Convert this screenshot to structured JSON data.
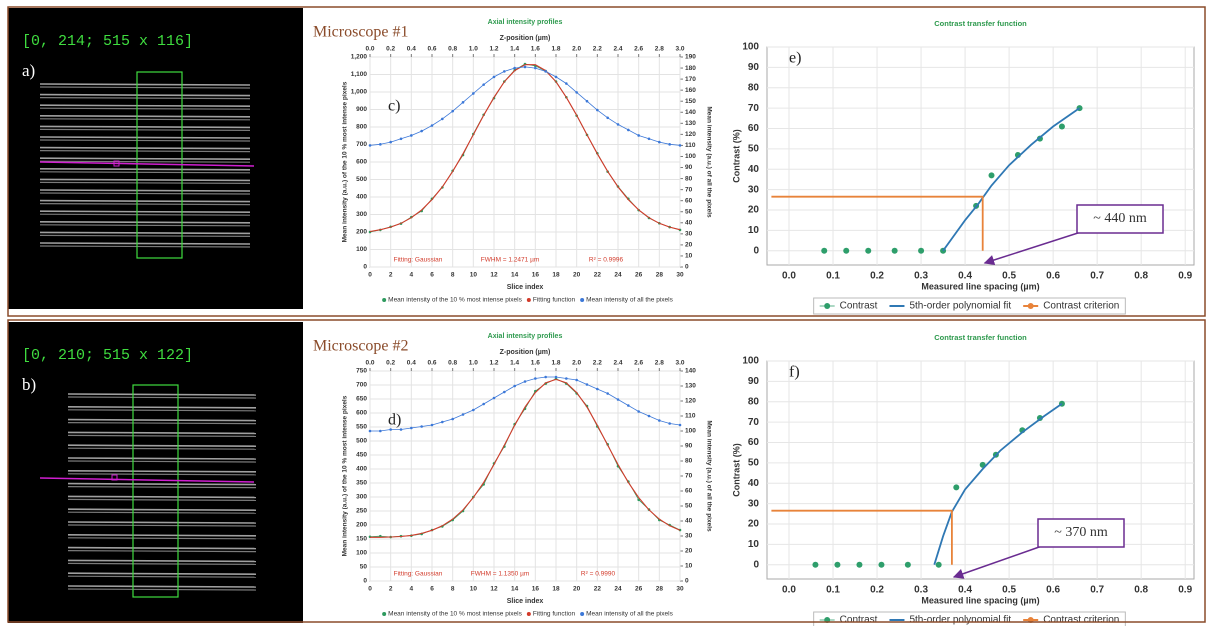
{
  "images": [
    {
      "label": "[0, 214; 515 x 116]",
      "panel": "a)"
    },
    {
      "label": "[0, 210; 515 x 122]",
      "panel": "b)"
    }
  ],
  "chart_data": [
    {
      "type": "line",
      "heading": "Microscope #1",
      "title": "Axial intensity profiles",
      "panel": "c)",
      "x_label": "Slice index",
      "x2_label": "Z-position (µm)",
      "y_label": "Mean intensity (a.u.) of the 10 % most intense pixels",
      "y2_label": "Mean intensity (a.u.) of all the pixels",
      "annotations": [
        "Fitting: Gaussian",
        "FWHM = 1.2471 µm",
        "R² = 0.9996"
      ],
      "grid": true,
      "x": [
        0,
        1,
        2,
        3,
        4,
        5,
        6,
        7,
        8,
        9,
        10,
        11,
        12,
        13,
        14,
        15,
        16,
        17,
        18,
        19,
        20,
        21,
        22,
        23,
        24,
        25,
        26,
        27,
        28,
        29,
        30
      ],
      "xlim": [
        0,
        30
      ],
      "xticks": [
        0,
        2,
        4,
        6,
        8,
        10,
        12,
        14,
        16,
        18,
        20,
        22,
        24,
        26,
        28,
        30
      ],
      "x2lim": [
        0,
        3
      ],
      "x2ticks": [
        {
          "value": 0,
          "label": "0.0"
        },
        0.2,
        0.4,
        0.6,
        0.8,
        {
          "value": 1,
          "label": "1.0"
        },
        1.2,
        1.4,
        1.6,
        1.8,
        {
          "value": 2,
          "label": "2.0"
        },
        2.2,
        2.4,
        2.6,
        2.8,
        {
          "value": 3,
          "label": "3.0"
        }
      ],
      "ylim": [
        0,
        1200
      ],
      "yticks": [
        0,
        100,
        200,
        300,
        400,
        500,
        600,
        700,
        800,
        900,
        {
          "value": 1000,
          "label": "1,000"
        },
        {
          "value": 1100,
          "label": "1,100"
        },
        {
          "value": 1200,
          "label": "1,200"
        }
      ],
      "y2lim": [
        0,
        190
      ],
      "y2ticks": [
        0,
        10,
        20,
        30,
        40,
        50,
        60,
        70,
        80,
        90,
        100,
        110,
        120,
        130,
        140,
        150,
        160,
        170,
        180,
        190
      ],
      "series": [
        {
          "name": "Mean intensity of the 10 % most intense pixels",
          "color": "#2e9a5e",
          "style": "line-markers",
          "values": [
            200,
            212,
            230,
            248,
            285,
            320,
            390,
            455,
            550,
            640,
            760,
            870,
            965,
            1060,
            1125,
            1160,
            1150,
            1120,
            1060,
            970,
            865,
            755,
            650,
            545,
            460,
            390,
            325,
            280,
            250,
            228,
            212
          ]
        },
        {
          "name": "Fitting function",
          "color": "#d23a2a",
          "style": "line",
          "values": [
            203,
            213,
            228,
            250,
            282,
            326,
            385,
            458,
            546,
            647,
            756,
            867,
            970,
            1058,
            1122,
            1156,
            1156,
            1122,
            1058,
            970,
            867,
            756,
            647,
            546,
            458,
            385,
            326,
            282,
            250,
            228,
            213
          ]
        },
        {
          "name": "Mean intensity of all the pixels",
          "color": "#3c78d8",
          "style": "line-markers",
          "axis": "y2",
          "values": [
            110,
            111,
            113,
            116,
            119,
            123,
            128,
            134,
            141,
            149,
            157,
            165,
            172,
            177,
            180,
            181,
            180,
            177,
            172,
            166,
            158,
            150,
            142,
            135,
            129,
            124,
            119,
            116,
            113,
            111,
            110
          ]
        }
      ]
    },
    {
      "type": "scatter",
      "title": "Contrast transfer function",
      "panel": "e)",
      "x_label": "Measured line spacing (µm)",
      "y_label": "Contrast (%)",
      "annotation": "~ 440 nm",
      "grid": true,
      "xlim": [
        -0.05,
        0.92
      ],
      "xticks": [
        {
          "value": 0,
          "label": "0.0"
        },
        0.1,
        0.2,
        0.3,
        0.4,
        0.5,
        0.6,
        0.7,
        0.8,
        0.9
      ],
      "ylim": [
        -7,
        100
      ],
      "yticks": [
        0,
        10,
        20,
        30,
        40,
        50,
        60,
        70,
        80,
        90,
        100
      ],
      "series": [
        {
          "name": "Contrast",
          "color": "#2e9e6b",
          "style": "markers",
          "x": [
            0.08,
            0.13,
            0.18,
            0.24,
            0.3,
            0.35,
            0.425,
            0.46,
            0.52,
            0.57,
            0.62,
            0.66
          ],
          "values": [
            0,
            0,
            0,
            0,
            0,
            0,
            22,
            37,
            47,
            55,
            61,
            70
          ]
        },
        {
          "name": "5th-order polynomial fit",
          "color": "#2f78b4",
          "style": "line",
          "x": [
            0.35,
            0.37,
            0.4,
            0.43,
            0.46,
            0.5,
            0.55,
            0.6,
            0.66
          ],
          "values": [
            0,
            6,
            15,
            23,
            32,
            42,
            52,
            61,
            70
          ]
        },
        {
          "name": "Contrast criterion",
          "color": "#e8833a",
          "style": "line",
          "x": [
            -0.04,
            0.44,
            0.44
          ],
          "values": [
            26.5,
            26.5,
            0
          ]
        }
      ]
    },
    {
      "type": "line",
      "heading": "Microscope #2",
      "title": "Axial intensity profiles",
      "panel": "d)",
      "x_label": "Slice index",
      "x2_label": "Z-position (µm)",
      "y_label": "Mean intensity (a.u.) of the 10 % most intense pixels",
      "y2_label": "Mean intensity (a.u.) of all the pixels",
      "annotations": [
        "Fitting: Gaussian",
        "FWHM = 1.1350 µm",
        "R² = 0.9990"
      ],
      "grid": true,
      "x": [
        0,
        1,
        2,
        3,
        4,
        5,
        6,
        7,
        8,
        9,
        10,
        11,
        12,
        13,
        14,
        15,
        16,
        17,
        18,
        19,
        20,
        21,
        22,
        23,
        24,
        25,
        26,
        27,
        28,
        29,
        30
      ],
      "xlim": [
        0,
        30
      ],
      "xticks": [
        0,
        2,
        4,
        6,
        8,
        10,
        12,
        14,
        16,
        18,
        20,
        22,
        24,
        26,
        28,
        30
      ],
      "x2lim": [
        0,
        3
      ],
      "x2ticks": [
        {
          "value": 0,
          "label": "0.0"
        },
        0.2,
        0.4,
        0.6,
        0.8,
        {
          "value": 1,
          "label": "1.0"
        },
        1.2,
        1.4,
        1.6,
        1.8,
        {
          "value": 2,
          "label": "2.0"
        },
        2.2,
        2.4,
        2.6,
        2.8,
        {
          "value": 3,
          "label": "3.0"
        }
      ],
      "ylim": [
        0,
        750
      ],
      "yticks": [
        0,
        50,
        100,
        150,
        200,
        250,
        300,
        350,
        400,
        450,
        500,
        550,
        600,
        650,
        700,
        750
      ],
      "y2lim": [
        0,
        140
      ],
      "y2ticks": [
        0,
        10,
        20,
        30,
        40,
        50,
        60,
        70,
        80,
        90,
        100,
        110,
        120,
        130,
        140
      ],
      "series": [
        {
          "name": "Mean intensity of the 10 % most intense pixels",
          "color": "#2e9a5e",
          "style": "line-markers",
          "values": [
            158,
            160,
            157,
            160,
            162,
            168,
            182,
            195,
            218,
            250,
            300,
            345,
            420,
            480,
            560,
            615,
            678,
            705,
            722,
            705,
            670,
            625,
            552,
            488,
            410,
            355,
            290,
            255,
            218,
            200,
            182
          ]
        },
        {
          "name": "Fitting function",
          "color": "#d23a2a",
          "style": "line",
          "values": [
            156,
            156,
            157,
            159,
            163,
            170,
            181,
            197,
            221,
            254,
            298,
            352,
            416,
            485,
            556,
            621,
            673,
            708,
            720,
            708,
            673,
            621,
            556,
            485,
            416,
            352,
            298,
            254,
            221,
            197,
            181
          ]
        },
        {
          "name": "Mean intensity of all the pixels",
          "color": "#3c78d8",
          "style": "line-markers",
          "axis": "y2",
          "values": [
            100,
            100,
            101,
            101,
            102,
            103,
            104,
            106,
            108,
            111,
            114,
            118,
            122,
            126,
            130,
            133,
            135,
            136,
            136,
            135,
            134,
            131,
            128,
            125,
            121,
            117,
            113,
            110,
            107,
            105,
            104
          ]
        }
      ]
    },
    {
      "type": "scatter",
      "title": "Contrast transfer function",
      "panel": "f)",
      "x_label": "Measured line spacing (µm)",
      "y_label": "Contrast (%)",
      "annotation": "~ 370 nm",
      "grid": true,
      "xlim": [
        -0.05,
        0.92
      ],
      "xticks": [
        {
          "value": 0,
          "label": "0.0"
        },
        0.1,
        0.2,
        0.3,
        0.4,
        0.5,
        0.6,
        0.7,
        0.8,
        0.9
      ],
      "ylim": [
        -7,
        100
      ],
      "yticks": [
        0,
        10,
        20,
        30,
        40,
        50,
        60,
        70,
        80,
        90,
        100
      ],
      "series": [
        {
          "name": "Contrast",
          "color": "#2e9e6b",
          "style": "markers",
          "x": [
            0.06,
            0.11,
            0.16,
            0.21,
            0.27,
            0.34,
            0.38,
            0.44,
            0.47,
            0.53,
            0.57,
            0.62
          ],
          "values": [
            0,
            0,
            0,
            0,
            0,
            0,
            38,
            49,
            54,
            66,
            72,
            79
          ]
        },
        {
          "name": "5th-order polynomial fit",
          "color": "#2f78b4",
          "style": "line",
          "x": [
            0.33,
            0.35,
            0.37,
            0.4,
            0.44,
            0.48,
            0.53,
            0.58,
            0.62
          ],
          "values": [
            0,
            14,
            26,
            37,
            47,
            56,
            65,
            73,
            79
          ]
        },
        {
          "name": "Contrast criterion",
          "color": "#e8833a",
          "style": "line",
          "x": [
            -0.04,
            0.37,
            0.37
          ],
          "values": [
            26.5,
            26.5,
            0
          ]
        }
      ]
    }
  ]
}
